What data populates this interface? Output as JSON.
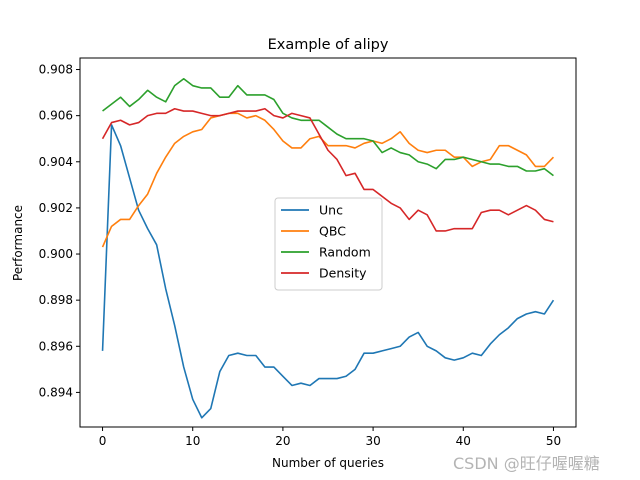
{
  "watermark": "CSDN @旺仔喔喔糖",
  "chart_data": {
    "type": "line",
    "title": "Example of alipy",
    "xlabel": "Number of queries",
    "ylabel": "Performance",
    "xlim": [
      -2.5,
      52.5
    ],
    "ylim": [
      0.8925,
      0.9085
    ],
    "xticks": [
      0,
      10,
      20,
      30,
      40,
      50
    ],
    "yticks": [
      0.894,
      0.896,
      0.898,
      0.9,
      0.902,
      0.904,
      0.906,
      0.908
    ],
    "grid": false,
    "legend_position": "center-right",
    "x": [
      0,
      1,
      2,
      3,
      4,
      5,
      6,
      7,
      8,
      9,
      10,
      11,
      12,
      13,
      14,
      15,
      16,
      17,
      18,
      19,
      20,
      21,
      22,
      23,
      24,
      25,
      26,
      27,
      28,
      29,
      30,
      31,
      32,
      33,
      34,
      35,
      36,
      37,
      38,
      39,
      40,
      41,
      42,
      43,
      44,
      45,
      46,
      47,
      48,
      49,
      50
    ],
    "series": [
      {
        "name": "Unc",
        "color": "#1f77b4",
        "values": [
          0.8958,
          0.9056,
          0.9047,
          0.9033,
          0.9019,
          0.9011,
          0.9004,
          0.8985,
          0.8969,
          0.8951,
          0.8937,
          0.8929,
          0.8933,
          0.8949,
          0.8956,
          0.8957,
          0.8956,
          0.8956,
          0.8951,
          0.8951,
          0.8947,
          0.8943,
          0.8944,
          0.8943,
          0.8946,
          0.8946,
          0.8946,
          0.8947,
          0.895,
          0.8957,
          0.8957,
          0.8958,
          0.8959,
          0.896,
          0.8964,
          0.8966,
          0.896,
          0.8958,
          0.8955,
          0.8954,
          0.8955,
          0.8957,
          0.8956,
          0.8961,
          0.8965,
          0.8968,
          0.8972,
          0.8974,
          0.8975,
          0.8974,
          0.898
        ]
      },
      {
        "name": "QBC",
        "color": "#ff7f0e",
        "values": [
          0.9003,
          0.9012,
          0.9015,
          0.9015,
          0.9021,
          0.9026,
          0.9035,
          0.9042,
          0.9048,
          0.9051,
          0.9053,
          0.9054,
          0.9059,
          0.906,
          0.9061,
          0.9061,
          0.9059,
          0.906,
          0.9058,
          0.9054,
          0.9049,
          0.9046,
          0.9046,
          0.905,
          0.9051,
          0.9047,
          0.9047,
          0.9047,
          0.9046,
          0.9048,
          0.9049,
          0.9048,
          0.905,
          0.9053,
          0.9048,
          0.9045,
          0.9044,
          0.9045,
          0.9045,
          0.9042,
          0.9042,
          0.9038,
          0.904,
          0.9041,
          0.9047,
          0.9047,
          0.9045,
          0.9043,
          0.9038,
          0.9038,
          0.9042
        ]
      },
      {
        "name": "Random",
        "color": "#2ca02c",
        "values": [
          0.9062,
          0.9065,
          0.9068,
          0.9064,
          0.9067,
          0.9071,
          0.9068,
          0.9066,
          0.9073,
          0.9076,
          0.9073,
          0.9072,
          0.9072,
          0.9068,
          0.9068,
          0.9073,
          0.9069,
          0.9069,
          0.9069,
          0.9067,
          0.9061,
          0.9059,
          0.9058,
          0.9058,
          0.9058,
          0.9055,
          0.9052,
          0.905,
          0.905,
          0.905,
          0.9049,
          0.9044,
          0.9046,
          0.9044,
          0.9043,
          0.904,
          0.9039,
          0.9037,
          0.9041,
          0.9041,
          0.9042,
          0.9041,
          0.904,
          0.9039,
          0.9039,
          0.9038,
          0.9038,
          0.9036,
          0.9036,
          0.9037,
          0.9034
        ]
      },
      {
        "name": "Density",
        "color": "#d62728",
        "values": [
          0.905,
          0.9057,
          0.9058,
          0.9056,
          0.9057,
          0.906,
          0.9061,
          0.9061,
          0.9063,
          0.9062,
          0.9062,
          0.9061,
          0.906,
          0.906,
          0.9061,
          0.9062,
          0.9062,
          0.9062,
          0.9063,
          0.906,
          0.9059,
          0.9061,
          0.906,
          0.9059,
          0.9052,
          0.9045,
          0.9041,
          0.9034,
          0.9035,
          0.9028,
          0.9028,
          0.9025,
          0.9022,
          0.902,
          0.9015,
          0.9019,
          0.9017,
          0.901,
          0.901,
          0.9011,
          0.9011,
          0.9011,
          0.9018,
          0.9019,
          0.9019,
          0.9017,
          0.9019,
          0.9021,
          0.9019,
          0.9015,
          0.9014
        ]
      }
    ]
  }
}
